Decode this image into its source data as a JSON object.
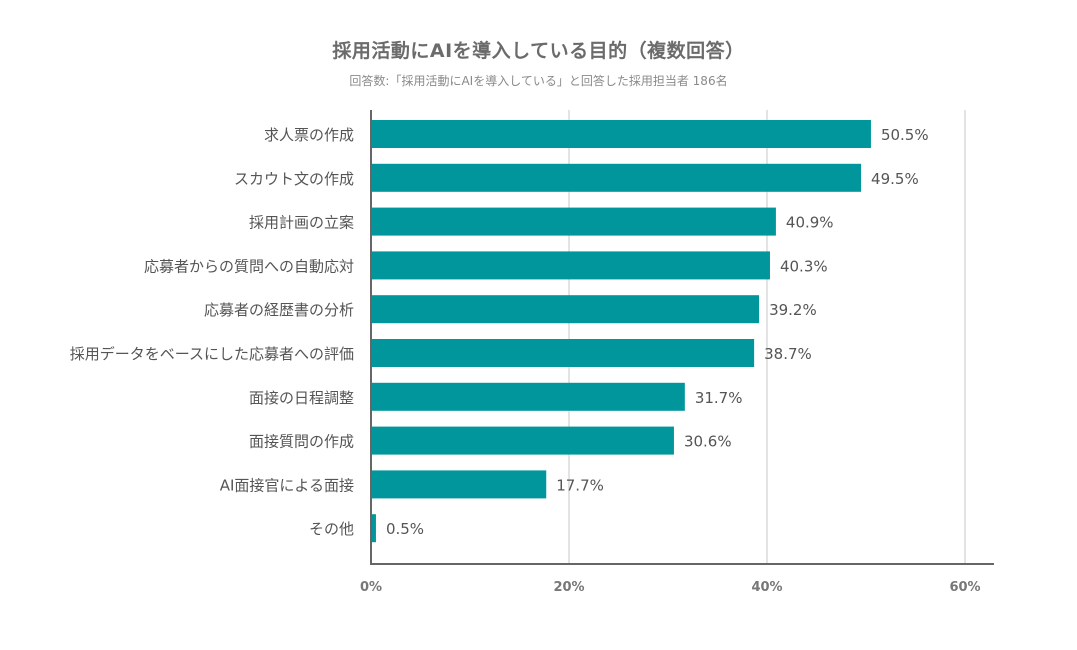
{
  "chart_data": {
    "type": "bar",
    "orientation": "horizontal",
    "title": "採用活動にAIを導入している目的（複数回答）",
    "subtitle": "回答数:「採用活動にAIを導入している」と回答した採用担当者 186名",
    "categories": [
      "求人票の作成",
      "スカウト文の作成",
      "採用計画の立案",
      "応募者からの質問への自動応対",
      "応募者の経歴書の分析",
      "採用データをベースにした応募者への評価",
      "面接の日程調整",
      "面接質問の作成",
      "AI面接官による面接",
      "その他"
    ],
    "values": [
      50.5,
      49.5,
      40.9,
      40.3,
      39.2,
      38.7,
      31.7,
      30.6,
      17.7,
      0.5
    ],
    "value_labels": [
      "50.5%",
      "49.5%",
      "40.9%",
      "40.3%",
      "39.2%",
      "38.7%",
      "31.7%",
      "30.6%",
      "17.7%",
      "0.5%"
    ],
    "xlim": [
      0,
      60
    ],
    "xticks": [
      0,
      20,
      40,
      60
    ],
    "xtick_labels": [
      "0%",
      "20%",
      "40%",
      "60%"
    ],
    "grid": true,
    "bar_color": "#00969c",
    "grid_color": "#e3e3e3",
    "axis_color": "#666666",
    "label_color": "#555555"
  }
}
